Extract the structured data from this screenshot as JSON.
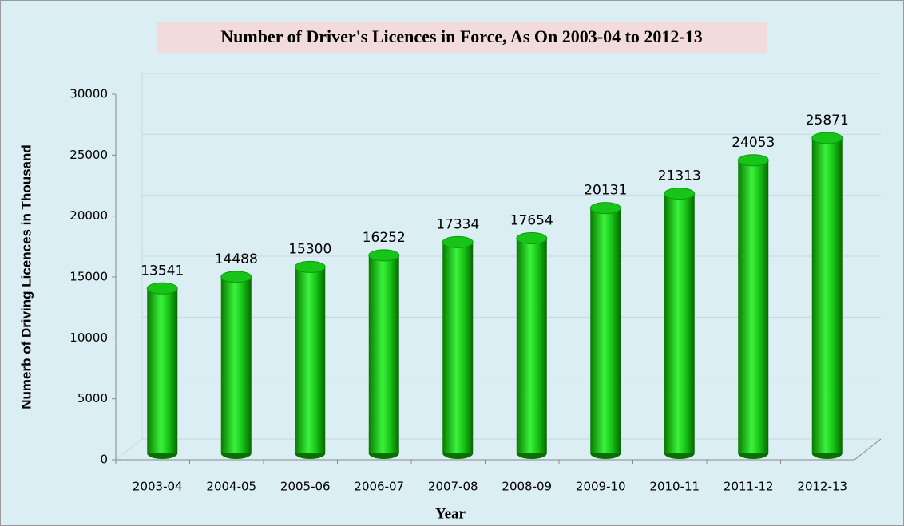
{
  "chart_data": {
    "type": "bar",
    "title": "Number of Driver's Licences in Force, As On 2003-04 to 2012-13",
    "x_label": "Year",
    "y_label": "Numerb of Driving Licences in Thousand",
    "categories": [
      "2003-04",
      "2004-05",
      "2005-06",
      "2006-07",
      "2007-08",
      "2008-09",
      "2009-10",
      "2010-11",
      "2011-12",
      "2012-13"
    ],
    "values": [
      13541,
      14488,
      15300,
      16252,
      17334,
      17654,
      20131,
      21313,
      24053,
      25871
    ],
    "color": "#19c419",
    "ylim": [
      0,
      30000
    ],
    "yticks": [
      0,
      5000,
      10000,
      15000,
      20000,
      25000,
      30000
    ],
    "grid": true
  }
}
